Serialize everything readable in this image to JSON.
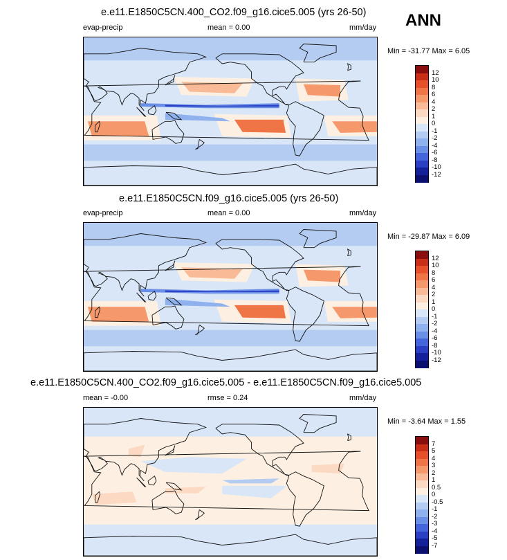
{
  "season": "ANN",
  "panels": [
    {
      "title": "e.e11.E1850C5CN.400_CO2.f09_g16.cice5.005 (yrs 26-50)",
      "left_label": "evap-precip",
      "center_label": "mean =   0.00",
      "units": "mm/day",
      "minmax": "Min = -31.77 Max =    6.05",
      "levels": [
        "12",
        "10",
        "8",
        "6",
        "4",
        "2",
        "1",
        "0",
        "-1",
        "-2",
        "-4",
        "-6",
        "-8",
        "-10",
        "-12"
      ],
      "colors": [
        "#8b0e0e",
        "#c92e16",
        "#e6512a",
        "#ef7446",
        "#f5986b",
        "#f9bb97",
        "#fbd9c2",
        "#fdf0e2",
        "#d8e6f8",
        "#b4ccf2",
        "#8fb1ee",
        "#6a8fe6",
        "#4465dc",
        "#2a3fc4",
        "#15219a",
        "#0a0f70"
      ]
    },
    {
      "title": "e.e11.E1850C5CN.f09_g16.cice5.005 (yrs 26-50)",
      "left_label": "evap-precip",
      "center_label": "mean =   0.00",
      "units": "mm/day",
      "minmax": "Min = -29.87 Max =    6.09",
      "levels": [
        "12",
        "10",
        "8",
        "6",
        "4",
        "2",
        "1",
        "0",
        "-1",
        "-2",
        "-4",
        "-6",
        "-8",
        "-10",
        "-12"
      ],
      "colors": [
        "#8b0e0e",
        "#c92e16",
        "#e6512a",
        "#ef7446",
        "#f5986b",
        "#f9bb97",
        "#fbd9c2",
        "#fdf0e2",
        "#d8e6f8",
        "#b4ccf2",
        "#8fb1ee",
        "#6a8fe6",
        "#4465dc",
        "#2a3fc4",
        "#15219a",
        "#0a0f70"
      ]
    },
    {
      "title": "e.e11.E1850C5CN.400_CO2.f09_g16.cice5.005 - e.e11.E1850C5CN.f09_g16.cice5.005",
      "left_label": "mean =  -0.00",
      "center_label": "rmse =   0.24",
      "units": "mm/day",
      "minmax": "Min =  -3.64 Max =    1.55",
      "levels": [
        "7",
        "5",
        "4",
        "3",
        "2",
        "1",
        "0.5",
        "0",
        "-0.5",
        "-1",
        "-2",
        "-3",
        "-4",
        "-5",
        "-7"
      ],
      "colors": [
        "#8b0e0e",
        "#c92e16",
        "#e6512a",
        "#ef7446",
        "#f5986b",
        "#f9bb97",
        "#fbd9c2",
        "#fdf0e2",
        "#d8e6f8",
        "#b4ccf2",
        "#8fb1ee",
        "#6a8fe6",
        "#4465dc",
        "#2a3fc4",
        "#15219a",
        "#0a0f70"
      ]
    }
  ]
}
